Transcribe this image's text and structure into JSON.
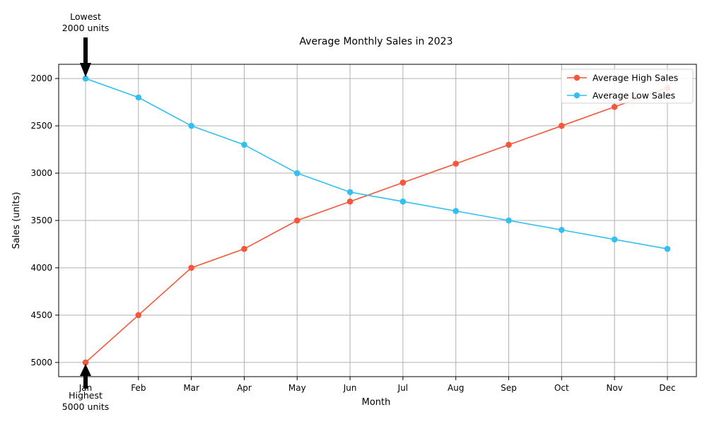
{
  "chart_data": {
    "type": "line",
    "title": "Average Monthly Sales in 2023",
    "xlabel": "Month",
    "ylabel": "Sales (units)",
    "categories": [
      "Jan",
      "Feb",
      "Mar",
      "Apr",
      "May",
      "Jun",
      "Jul",
      "Aug",
      "Sep",
      "Oct",
      "Nov",
      "Dec"
    ],
    "series": [
      {
        "name": "Average High Sales",
        "color": "#f4573a",
        "values": [
          5000,
          4500,
          4000,
          3800,
          3500,
          3300,
          3100,
          2900,
          2700,
          2500,
          2300,
          2100
        ]
      },
      {
        "name": "Average Low Sales",
        "color": "#33bff0",
        "values": [
          2000,
          2200,
          2500,
          2700,
          3000,
          3200,
          3300,
          3400,
          3500,
          3600,
          3700,
          3800
        ]
      }
    ],
    "ylim": [
      1850,
      5150
    ],
    "y_inverted": true,
    "yticks": [
      "2000",
      "2500",
      "3000",
      "3500",
      "4000",
      "4500",
      "5000"
    ],
    "grid": true,
    "legend_position": "top-right",
    "annotations": [
      {
        "text_line1": "Lowest",
        "text_line2": "2000 units",
        "category": "Jan",
        "value": 2000,
        "direction": "down"
      },
      {
        "text_line1": "Highest",
        "text_line2": "5000 units",
        "category": "Jan",
        "value": 5000,
        "direction": "up"
      }
    ]
  }
}
